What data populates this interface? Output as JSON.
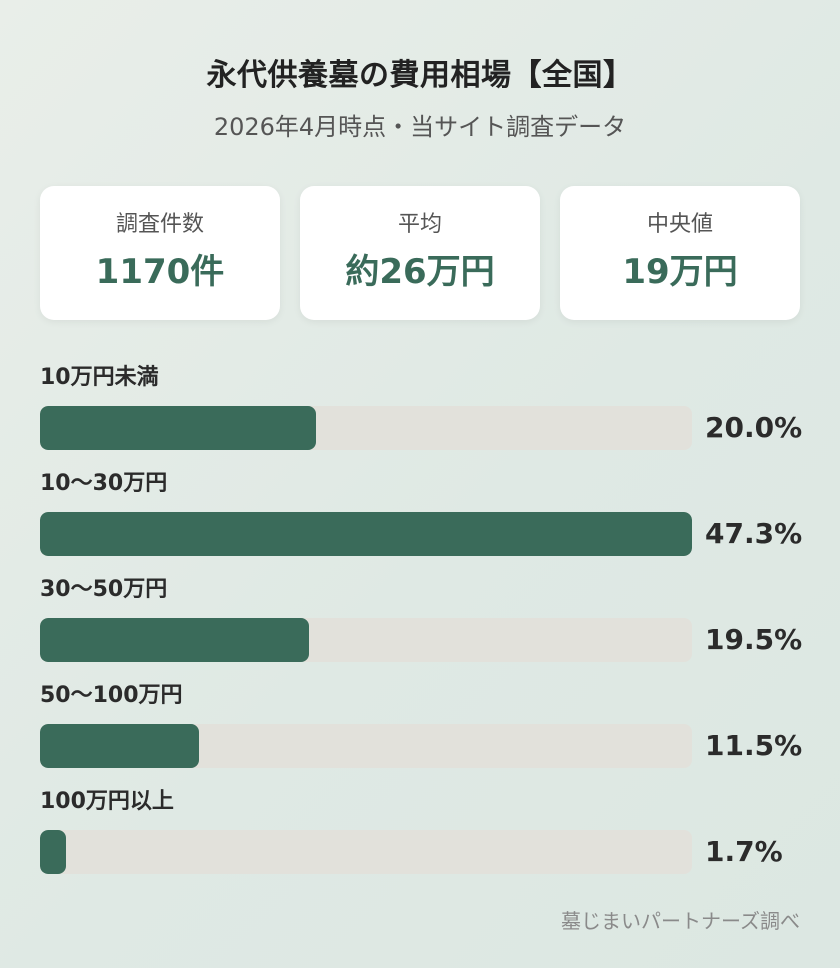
{
  "title": "永代供養墓の費用相場【全国】",
  "subtitle": "2026年4月時点・当サイト調査データ",
  "stats": [
    {
      "label": "調査件数",
      "value": "1170件"
    },
    {
      "label": "平均",
      "value": "約26万円"
    },
    {
      "label": "中央値",
      "value": "19万円"
    }
  ],
  "chart_data": {
    "type": "bar",
    "orientation": "horizontal",
    "categories": [
      "10万円未満",
      "10〜30万円",
      "30〜50万円",
      "50〜100万円",
      "100万円以上"
    ],
    "values": [
      20.0,
      47.3,
      19.5,
      11.5,
      1.7
    ],
    "value_labels": [
      "20.0%",
      "47.3%",
      "19.5%",
      "11.5%",
      "1.7%"
    ],
    "unit": "%",
    "xlim": [
      0,
      47.3
    ],
    "grid": false,
    "colors": {
      "bar": "#3a6b5a",
      "track": "#e2e1db"
    }
  },
  "footer": "墓じまいパートナーズ調べ"
}
